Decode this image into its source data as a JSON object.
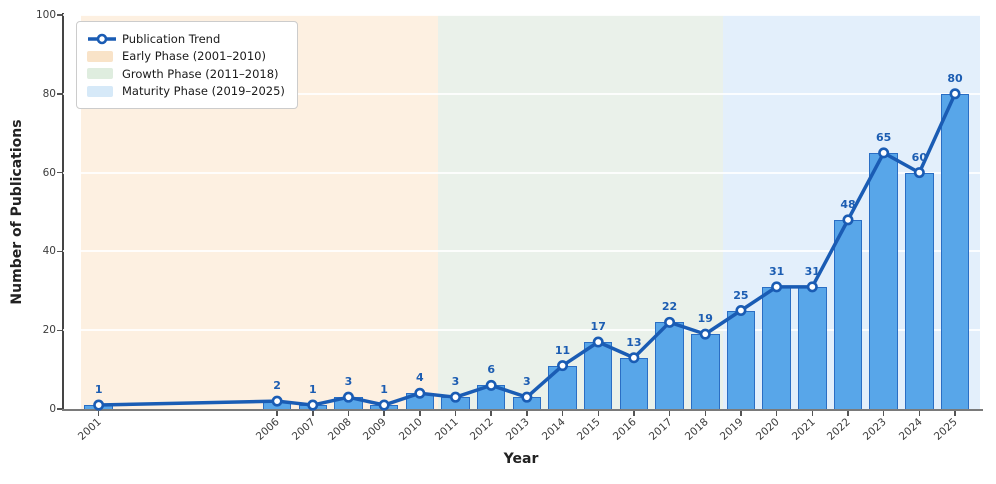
{
  "chart_data": {
    "type": "bar",
    "title": "",
    "xlabel": "Year",
    "ylabel": "Number of Publications",
    "series_name": "Publication Trend",
    "x": [
      2001,
      2006,
      2007,
      2008,
      2009,
      2010,
      2011,
      2012,
      2013,
      2014,
      2015,
      2016,
      2017,
      2018,
      2019,
      2020,
      2021,
      2022,
      2023,
      2024,
      2025
    ],
    "values": [
      1,
      2,
      1,
      3,
      1,
      4,
      3,
      6,
      3,
      11,
      17,
      13,
      22,
      19,
      25,
      31,
      31,
      48,
      65,
      60,
      80
    ],
    "xlim": [
      2000,
      2025.7
    ],
    "ylim": [
      0,
      100
    ],
    "yticks": [
      0,
      20,
      40,
      60,
      80,
      100
    ],
    "grid": "horizontal-white",
    "legend_position": "upper-left",
    "phases": [
      {
        "label": "Early Phase (2001–2010)",
        "start": 2000.5,
        "end": 2010.5,
        "color": "#fdf0e1",
        "swatch": "#f9e3c8"
      },
      {
        "label": "Growth Phase (2011–2018)",
        "start": 2010.5,
        "end": 2018.5,
        "color": "#eaf1ea",
        "swatch": "#dfeddf"
      },
      {
        "label": "Maturity Phase (2019–2025)",
        "start": 2018.5,
        "end": 2025.7,
        "color": "#e3effb",
        "swatch": "#d6e9f8"
      }
    ],
    "colors": {
      "bar_fill": "#58a6e9",
      "bar_edge": "#2a6ec4",
      "line": "#1a5cb4",
      "marker_fill": "#ffffff",
      "value_label": "#1c5db2"
    }
  }
}
